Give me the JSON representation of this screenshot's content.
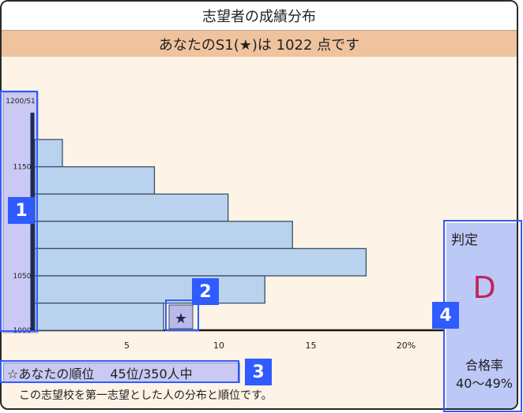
{
  "title": "志望者の成績分布",
  "score_line": "あなたのS1(★)は 1022 点です",
  "rank": {
    "label": "☆あなたの順位",
    "value": "45位/350人中"
  },
  "note": "この志望校を第一志望とした人の分布と順位です。",
  "judgement": {
    "label": "判定",
    "grade": "D",
    "rate_label": "合格率",
    "rate_value": "40～49%"
  },
  "badges": [
    "1",
    "2",
    "3",
    "4"
  ],
  "colors": {
    "bar_fill": "#b9d3ee",
    "bar_stroke": "#3b4e66",
    "highlight": "#2f5bff",
    "grade": "#c0245a"
  },
  "chart_data": {
    "type": "bar",
    "orientation": "horizontal",
    "ylabel": "1200/S1",
    "y_ticks": [
      1150,
      1050,
      1000
    ],
    "x_ticks": [
      "5",
      "10",
      "15",
      "20%"
    ],
    "xlim": [
      0,
      23
    ],
    "bins": [
      {
        "from": 1150,
        "to": 1175,
        "value": 1.5
      },
      {
        "from": 1125,
        "to": 1150,
        "value": 6.5
      },
      {
        "from": 1100,
        "to": 1125,
        "value": 10.5
      },
      {
        "from": 1075,
        "to": 1100,
        "value": 14
      },
      {
        "from": 1050,
        "to": 1075,
        "value": 18
      },
      {
        "from": 1025,
        "to": 1050,
        "value": 12.5
      },
      {
        "from": 1000,
        "to": 1025,
        "value": 7
      }
    ],
    "marker": {
      "symbol": "★",
      "score": 1022,
      "x_position": 8.3
    }
  }
}
